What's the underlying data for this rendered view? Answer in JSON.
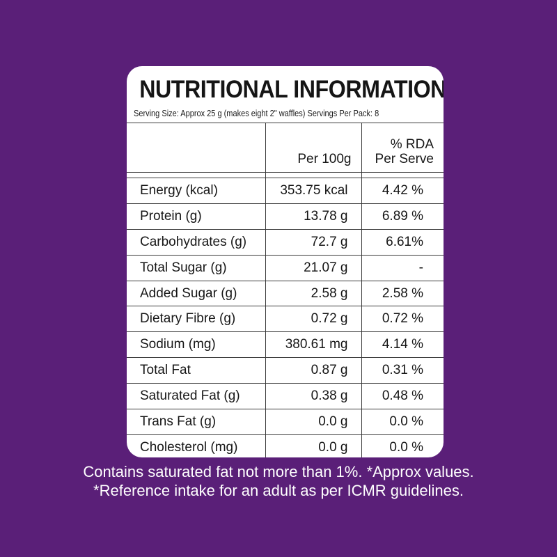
{
  "panel": {
    "title": "NUTRITIONAL INFORMATION",
    "serving": "Serving Size: Approx 25 g (makes eight  2\" waffles) Servings Per Pack: 8"
  },
  "table": {
    "headers": [
      "",
      "Per 100g",
      "% RDA\nPer Serve"
    ],
    "header_per100": "Per 100g",
    "header_rda_1": "% RDA",
    "header_rda_2": "Per Serve",
    "rows": [
      {
        "name": "Energy (kcal)",
        "per100": "353.75  kcal",
        "rda": "4.42 %"
      },
      {
        "name": "Protein (g)",
        "per100": "13.78  g",
        "rda": "6.89 %"
      },
      {
        "name": "Carbohydrates (g)",
        "per100": "72.7  g",
        "rda": "6.61%"
      },
      {
        "name": "Total Sugar (g)",
        "per100": "21.07 g",
        "rda": "-"
      },
      {
        "name": "Added Sugar (g)",
        "per100": "2.58 g",
        "rda": "2.58 %"
      },
      {
        "name": "Dietary Fibre (g)",
        "per100": "0.72 g",
        "rda": "0.72 %"
      },
      {
        "name": "Sodium (mg)",
        "per100": "380.61 mg",
        "rda": "4.14 %"
      },
      {
        "name": "Total Fat",
        "per100": "0.87 g",
        "rda": "0.31 %"
      },
      {
        "name": "Saturated Fat (g)",
        "per100": "0.38 g",
        "rda": "0.48 %"
      },
      {
        "name": "Trans Fat (g)",
        "per100": "0.0 g",
        "rda": "0.0 %"
      },
      {
        "name": "Cholesterol (mg)",
        "per100": "0.0 g",
        "rda": "0.0 %"
      }
    ]
  },
  "footer": {
    "line1": "Contains saturated fat not more than 1%. *Approx values.",
    "line2": "*Reference intake for an adult as per ICMR guidelines."
  },
  "colors": {
    "background": "#5a1f78",
    "panel": "#ffffff",
    "text": "#161616"
  }
}
